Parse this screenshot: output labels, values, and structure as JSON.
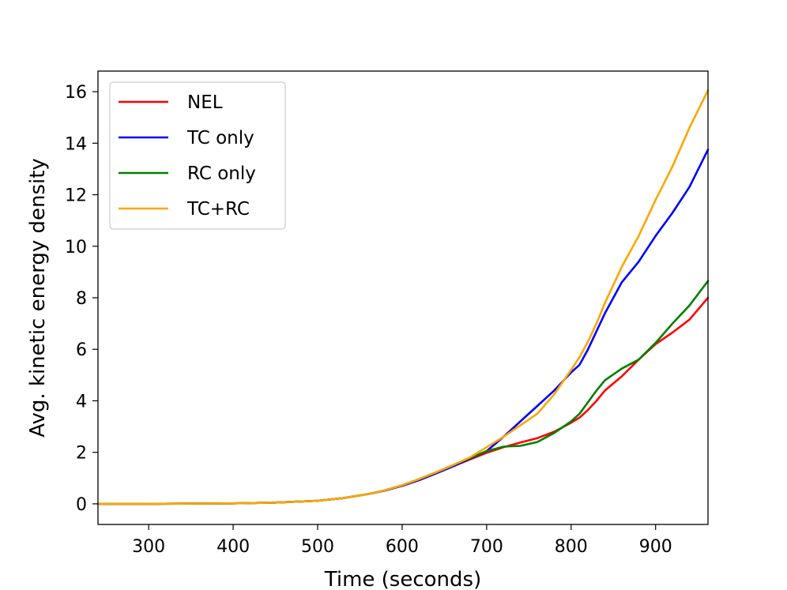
{
  "chart_data": {
    "type": "line",
    "title": "",
    "xlabel": "Time (seconds)",
    "ylabel": "Avg. kinetic energy density",
    "xlim": [
      240,
      962
    ],
    "ylim": [
      -0.8,
      16.8
    ],
    "xticks": [
      300,
      400,
      500,
      600,
      700,
      800,
      900
    ],
    "yticks": [
      0,
      2,
      4,
      6,
      8,
      10,
      12,
      14,
      16
    ],
    "grid": false,
    "legend_position": "top-left",
    "series": [
      {
        "name": "NEL",
        "color": "#ff0000",
        "x": [
          240,
          300,
          350,
          400,
          450,
          500,
          530,
          560,
          580,
          600,
          620,
          640,
          660,
          680,
          700,
          720,
          740,
          760,
          780,
          800,
          810,
          820,
          830,
          840,
          860,
          880,
          900,
          920,
          940,
          962
        ],
        "y": [
          0,
          0,
          0.01,
          0.02,
          0.05,
          0.12,
          0.22,
          0.38,
          0.52,
          0.7,
          0.92,
          1.18,
          1.45,
          1.72,
          1.98,
          2.2,
          2.38,
          2.55,
          2.8,
          3.15,
          3.35,
          3.65,
          4.0,
          4.4,
          4.95,
          5.6,
          6.2,
          6.65,
          7.15,
          8.0
        ]
      },
      {
        "name": "TC only",
        "color": "#0000ff",
        "x": [
          240,
          300,
          350,
          400,
          450,
          500,
          530,
          560,
          580,
          600,
          620,
          640,
          660,
          680,
          700,
          720,
          740,
          760,
          780,
          800,
          810,
          820,
          830,
          840,
          860,
          880,
          900,
          920,
          940,
          962
        ],
        "y": [
          0,
          0,
          0.01,
          0.02,
          0.05,
          0.12,
          0.22,
          0.38,
          0.52,
          0.7,
          0.92,
          1.18,
          1.45,
          1.75,
          2.05,
          2.6,
          3.2,
          3.8,
          4.4,
          5.1,
          5.4,
          6.0,
          6.7,
          7.4,
          8.6,
          9.4,
          10.4,
          11.3,
          12.3,
          13.75
        ]
      },
      {
        "name": "RC only",
        "color": "#008000",
        "x": [
          240,
          300,
          350,
          400,
          450,
          500,
          530,
          560,
          580,
          600,
          620,
          640,
          660,
          680,
          700,
          720,
          740,
          760,
          780,
          800,
          810,
          820,
          830,
          840,
          860,
          880,
          900,
          920,
          940,
          962
        ],
        "y": [
          0,
          0,
          0.01,
          0.02,
          0.05,
          0.12,
          0.22,
          0.38,
          0.53,
          0.72,
          0.96,
          1.22,
          1.5,
          1.78,
          2.05,
          2.22,
          2.25,
          2.4,
          2.75,
          3.2,
          3.5,
          3.95,
          4.4,
          4.8,
          5.25,
          5.6,
          6.25,
          7.0,
          7.7,
          8.65
        ]
      },
      {
        "name": "TC+RC",
        "color": "#ffa500",
        "x": [
          240,
          300,
          350,
          400,
          450,
          500,
          530,
          560,
          580,
          600,
          620,
          640,
          660,
          680,
          700,
          720,
          740,
          760,
          780,
          800,
          810,
          820,
          830,
          840,
          860,
          880,
          900,
          920,
          940,
          962
        ],
        "y": [
          0,
          0,
          0.01,
          0.02,
          0.05,
          0.12,
          0.22,
          0.38,
          0.53,
          0.72,
          0.96,
          1.22,
          1.5,
          1.8,
          2.2,
          2.6,
          3.05,
          3.5,
          4.25,
          5.2,
          5.7,
          6.3,
          7.0,
          7.8,
          9.2,
          10.4,
          11.8,
          13.1,
          14.6,
          16.05
        ]
      }
    ]
  }
}
